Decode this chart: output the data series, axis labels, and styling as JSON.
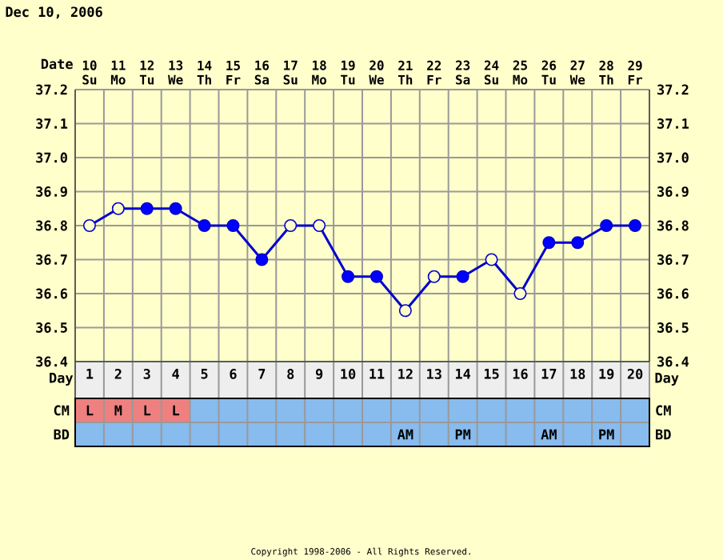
{
  "chart_data": [
    {
      "type": "line",
      "title": "Dec 10, 2006",
      "xlabel": "Day",
      "x2label": "Date",
      "x": [
        1,
        2,
        3,
        4,
        5,
        6,
        7,
        8,
        9,
        10,
        11,
        12,
        13,
        14,
        15,
        16,
        17,
        18,
        19,
        20
      ],
      "xlim": [
        0.5,
        20.5
      ],
      "xticks": [
        {
          "value": 1,
          "label": "1"
        },
        {
          "value": 2,
          "label": "2"
        },
        {
          "value": 3,
          "label": "3"
        },
        {
          "value": 4,
          "label": "4"
        },
        {
          "value": 5,
          "label": "5"
        },
        {
          "value": 6,
          "label": "6"
        },
        {
          "value": 7,
          "label": "7"
        },
        {
          "value": 8,
          "label": "8"
        },
        {
          "value": 9,
          "label": "9"
        },
        {
          "value": 10,
          "label": "10"
        },
        {
          "value": 11,
          "label": "11"
        },
        {
          "value": 12,
          "label": "12"
        },
        {
          "value": 13,
          "label": "13"
        },
        {
          "value": 14,
          "label": "14"
        },
        {
          "value": 15,
          "label": "15"
        },
        {
          "value": 16,
          "label": "16"
        },
        {
          "value": 17,
          "label": "17"
        },
        {
          "value": 18,
          "label": "18"
        },
        {
          "value": 19,
          "label": "19"
        },
        {
          "value": 20,
          "label": "20"
        }
      ],
      "x2lim": [
        9.5,
        29.5
      ],
      "x2ticks": [
        {
          "value": 10,
          "label": "10 Su"
        },
        {
          "value": 11,
          "label": "11 Mo"
        },
        {
          "value": 12,
          "label": "12 Tu"
        },
        {
          "value": 13,
          "label": "13 We"
        },
        {
          "value": 14,
          "label": "14 Th"
        },
        {
          "value": 15,
          "label": "15 Fr"
        },
        {
          "value": 16,
          "label": "16 Sa"
        },
        {
          "value": 17,
          "label": "17 Su"
        },
        {
          "value": 18,
          "label": "18 Mo"
        },
        {
          "value": 19,
          "label": "19 Tu"
        },
        {
          "value": 20,
          "label": "20 We"
        },
        {
          "value": 21,
          "label": "21 Th"
        },
        {
          "value": 22,
          "label": "22 Fr"
        },
        {
          "value": 23,
          "label": "23 Sa"
        },
        {
          "value": 24,
          "label": "24 Su"
        },
        {
          "value": 25,
          "label": "25 Mo"
        },
        {
          "value": 26,
          "label": "26 Tu"
        },
        {
          "value": 27,
          "label": "27 We"
        },
        {
          "value": 28,
          "label": "28 Th"
        },
        {
          "value": 29,
          "label": "29 Fr"
        }
      ],
      "ylim": [
        36.4,
        37.2
      ],
      "yticks": [
        {
          "value": 36.4,
          "label": "36.4"
        },
        {
          "value": 36.5,
          "label": "36.5"
        },
        {
          "value": 36.6,
          "label": "36.6"
        },
        {
          "value": 36.7,
          "label": "36.7"
        },
        {
          "value": 36.8,
          "label": "36.8"
        },
        {
          "value": 36.9,
          "label": "36.9"
        },
        {
          "value": 37.0,
          "label": "37.0"
        },
        {
          "value": 37.1,
          "label": "37.1"
        },
        {
          "value": 37.2,
          "label": "37.2"
        }
      ],
      "y2lim": [
        36.4,
        37.2
      ],
      "y2ticks": [
        {
          "value": 36.4,
          "label": "36.4"
        },
        {
          "value": 36.5,
          "label": "36.5"
        },
        {
          "value": 36.6,
          "label": "36.6"
        },
        {
          "value": 36.7,
          "label": "36.7"
        },
        {
          "value": 36.8,
          "label": "36.8"
        },
        {
          "value": 36.9,
          "label": "36.9"
        },
        {
          "value": 37.0,
          "label": "37.0"
        },
        {
          "value": 37.1,
          "label": "37.1"
        },
        {
          "value": 37.2,
          "label": "37.2"
        }
      ],
      "grid": true,
      "series": [
        {
          "type": "line",
          "color": "#0000cc",
          "marker": "none",
          "values": [
            36.8,
            36.85,
            36.85,
            36.85,
            36.8,
            36.8,
            36.7,
            36.8,
            36.8,
            36.65,
            36.65,
            36.55,
            36.65,
            36.65,
            36.7,
            36.6,
            36.75,
            36.75,
            36.8,
            36.8
          ]
        },
        {
          "type": "scatter",
          "color": "#ffffcc",
          "marker": "circle",
          "values": [
            36.8,
            36.85,
            null,
            null,
            null,
            null,
            null,
            36.8,
            36.8,
            null,
            null,
            36.55,
            36.65,
            null,
            36.7,
            36.6,
            null,
            null,
            null,
            null
          ]
        },
        {
          "type": "scatter",
          "color": "#0000ff",
          "marker": "circle",
          "values": [
            null,
            null,
            36.85,
            36.85,
            36.8,
            36.8,
            36.7,
            null,
            null,
            36.65,
            36.65,
            null,
            null,
            36.65,
            null,
            null,
            36.75,
            36.75,
            36.8,
            36.8
          ]
        }
      ],
      "annotations": [
        "Copyright 1998-2006 - All Rights Reserved."
      ]
    },
    {
      "type": "heatmap",
      "categories": [
        null,
        null,
        null,
        null,
        null,
        null,
        null,
        null,
        null,
        null,
        null,
        null,
        null,
        null,
        null,
        null,
        null,
        null,
        null,
        null
      ],
      "y_categories": [
        "CM",
        "BD"
      ],
      "y2_categories": [
        "CM",
        "BD"
      ],
      "colors": [
        [
          "#ee8080",
          "#ee8080",
          "#ee8080",
          "#ee8080",
          "#88bbee",
          "#88bbee",
          "#88bbee",
          "#88bbee",
          "#88bbee",
          "#88bbee",
          "#88bbee",
          "#88bbee",
          "#88bbee",
          "#88bbee",
          "#88bbee",
          "#88bbee",
          "#88bbee",
          "#88bbee",
          "#88bbee",
          "#88bbee"
        ],
        [
          "#88bbee",
          "#88bbee",
          "#88bbee",
          "#88bbee",
          "#88bbee",
          "#88bbee",
          "#88bbee",
          "#88bbee",
          "#88bbee",
          "#88bbee",
          "#88bbee",
          "#88bbee",
          "#88bbee",
          "#88bbee",
          "#88bbee",
          "#88bbee",
          "#88bbee",
          "#88bbee",
          "#88bbee",
          "#88bbee"
        ]
      ],
      "cells": [
        [
          null,
          null,
          null,
          null,
          null,
          null,
          null,
          null,
          null,
          null,
          null,
          null,
          null,
          null,
          null,
          null,
          null,
          null,
          null,
          null
        ],
        [
          null,
          null,
          null,
          null,
          null,
          null,
          null,
          null,
          null,
          null,
          null,
          null,
          null,
          null,
          null,
          null,
          null,
          null,
          null,
          null
        ]
      ],
      "cell_labels": [
        [
          "L",
          "M",
          "L",
          "L",
          null,
          null,
          null,
          null,
          null,
          null,
          null,
          null,
          null,
          null,
          null,
          null,
          null,
          null,
          null,
          null
        ],
        [
          null,
          null,
          null,
          null,
          null,
          null,
          null,
          null,
          null,
          null,
          null,
          "AM",
          null,
          "PM",
          null,
          null,
          "AM",
          null,
          "PM",
          null
        ]
      ]
    }
  ]
}
